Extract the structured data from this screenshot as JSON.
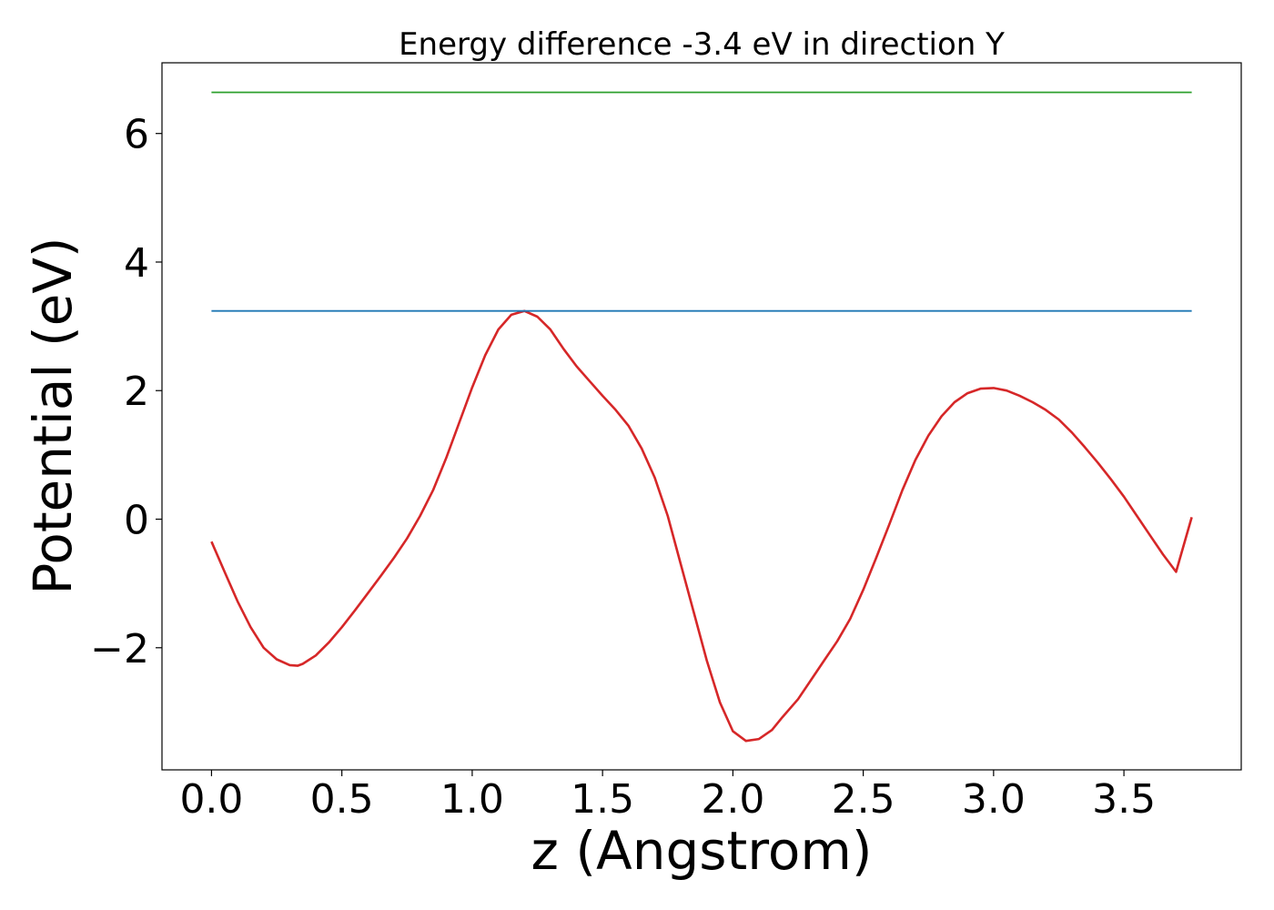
{
  "chart_data": {
    "type": "line",
    "title": "Energy difference -3.4 eV in direction Y",
    "xlabel": "z (Angstrom)",
    "ylabel": "Potential (eV)",
    "xlim": [
      -0.19,
      3.95
    ],
    "ylim": [
      -3.9,
      7.1
    ],
    "xticks": [
      0.0,
      0.5,
      1.0,
      1.5,
      2.0,
      2.5,
      3.0,
      3.5
    ],
    "xtick_labels": [
      "0.0",
      "0.5",
      "1.0",
      "1.5",
      "2.0",
      "2.5",
      "3.0",
      "3.5"
    ],
    "yticks": [
      -2,
      0,
      2,
      4,
      6
    ],
    "ytick_labels": [
      "−2",
      "0",
      "2",
      "4",
      "6"
    ],
    "grid": false,
    "series": [
      {
        "color": "#d62728",
        "x": [
          0.0,
          0.05,
          0.1,
          0.15,
          0.2,
          0.25,
          0.3,
          0.33,
          0.35,
          0.4,
          0.45,
          0.5,
          0.55,
          0.6,
          0.65,
          0.7,
          0.75,
          0.8,
          0.85,
          0.9,
          0.95,
          1.0,
          1.05,
          1.1,
          1.15,
          1.2,
          1.25,
          1.3,
          1.35,
          1.4,
          1.45,
          1.5,
          1.55,
          1.6,
          1.65,
          1.7,
          1.75,
          1.8,
          1.85,
          1.9,
          1.95,
          2.0,
          2.05,
          2.1,
          2.15,
          2.19,
          2.25,
          2.3,
          2.35,
          2.4,
          2.45,
          2.5,
          2.55,
          2.6,
          2.65,
          2.7,
          2.75,
          2.8,
          2.85,
          2.9,
          2.95,
          3.0,
          3.05,
          3.1,
          3.15,
          3.2,
          3.25,
          3.3,
          3.35,
          3.4,
          3.45,
          3.5,
          3.55,
          3.6,
          3.65,
          3.7,
          3.76
        ],
        "y": [
          -0.35,
          -0.82,
          -1.28,
          -1.68,
          -2.0,
          -2.18,
          -2.27,
          -2.28,
          -2.25,
          -2.12,
          -1.92,
          -1.68,
          -1.42,
          -1.15,
          -0.88,
          -0.6,
          -0.3,
          0.05,
          0.45,
          0.95,
          1.5,
          2.05,
          2.55,
          2.95,
          3.18,
          3.24,
          3.15,
          2.95,
          2.65,
          2.38,
          2.15,
          1.92,
          1.7,
          1.45,
          1.1,
          0.65,
          0.05,
          -0.7,
          -1.45,
          -2.2,
          -2.85,
          -3.3,
          -3.45,
          -3.42,
          -3.28,
          -3.08,
          -2.8,
          -2.5,
          -2.2,
          -1.9,
          -1.55,
          -1.1,
          -0.6,
          -0.08,
          0.45,
          0.92,
          1.3,
          1.6,
          1.82,
          1.96,
          2.03,
          2.04,
          2.0,
          1.92,
          1.82,
          1.7,
          1.55,
          1.35,
          1.12,
          0.88,
          0.62,
          0.35,
          0.05,
          -0.25,
          -0.55,
          -0.82,
          0.03
        ]
      },
      {
        "color": "#1f77b4",
        "x": [
          0.0,
          3.76
        ],
        "y": [
          3.24,
          3.24
        ]
      },
      {
        "color": "#2ca02c",
        "x": [
          0.0,
          3.76
        ],
        "y": [
          6.64,
          6.64
        ]
      }
    ]
  }
}
